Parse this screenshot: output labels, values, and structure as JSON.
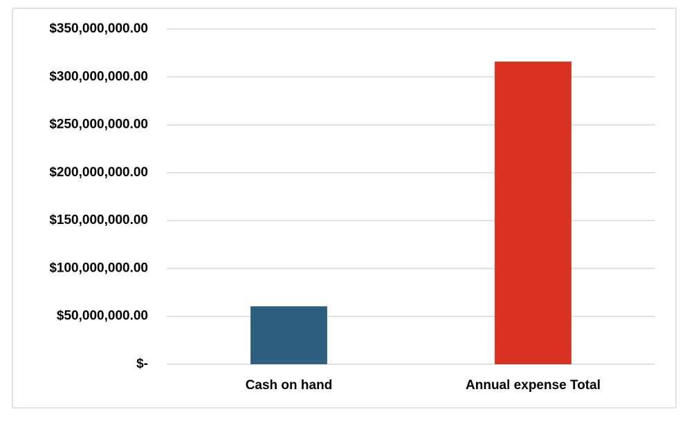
{
  "chart_data": {
    "type": "bar",
    "categories": [
      "Cash on hand",
      "Annual expense Total"
    ],
    "values": [
      60500000,
      316000000
    ],
    "colors": [
      "#2e5f80",
      "#d93122"
    ],
    "ylim": [
      0,
      350000000
    ],
    "yticks": [
      {
        "value": 0,
        "label": "$-"
      },
      {
        "value": 50000000,
        "label": "$50,000,000.00"
      },
      {
        "value": 100000000,
        "label": "$100,000,000.00"
      },
      {
        "value": 150000000,
        "label": "$150,000,000.00"
      },
      {
        "value": 200000000,
        "label": "$200,000,000.00"
      },
      {
        "value": 250000000,
        "label": "$250,000,000.00"
      },
      {
        "value": 300000000,
        "label": "$300,000,000.00"
      },
      {
        "value": 350000000,
        "label": "$350,000,000.00"
      }
    ],
    "grid": true
  }
}
